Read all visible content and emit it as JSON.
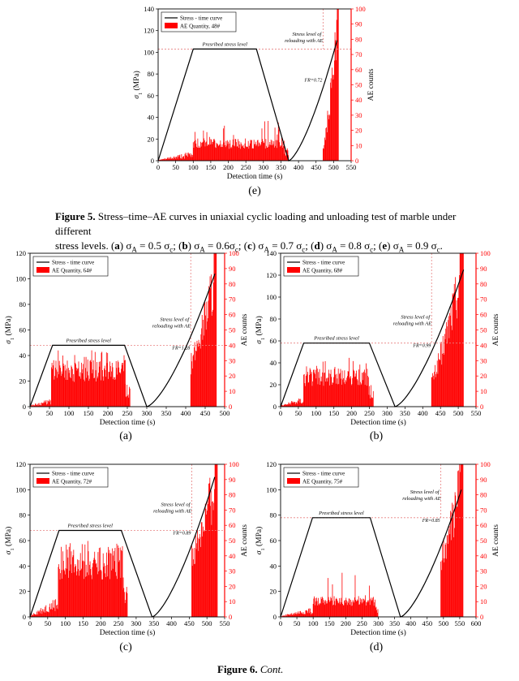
{
  "caption_fig5": {
    "label": "Figure 5.",
    "line1": " Stress–time–AE curves in uniaxial cyclic loading and unloading test of marble under different",
    "line2_parts": [
      "stress levels. (",
      "a",
      ") σ",
      "A",
      " = 0.5 σ",
      "c",
      "; (",
      "b",
      ") σ",
      "A",
      " = 0.6σ",
      "c",
      "; (",
      "c",
      ") σ",
      "A",
      " = 0.7 σ",
      "c",
      "; (",
      "d",
      ") σ",
      "A",
      " = 0.8 σ",
      "c",
      "; (",
      "e",
      ") σ",
      "A",
      " = 0.9 σ",
      "c",
      "."
    ]
  },
  "caption_fig6": {
    "label": "Figure 6.",
    "text": " Cont."
  },
  "panel_labels": {
    "e": "(e)",
    "a": "(a)",
    "b": "(b)",
    "c": "(c)",
    "d": "(d)"
  },
  "common": {
    "xlabel": "Detection time (s)",
    "ylabel": "σ1 (MPa)",
    "ylabel_right": "AE counts",
    "legend_line": "Stress - time curve",
    "annot_prescribed": "Presribed stress level",
    "annot_reload": [
      "Stress level of",
      "reloading with AE"
    ],
    "colors": {
      "ae": "#ff0000",
      "stress": "#000000",
      "refline": "#e88080",
      "axis_right": "#ff0000"
    }
  },
  "chart_data": [
    {
      "id": "e",
      "type": "line+bar",
      "legend_bar": "AE Quantity, 48#",
      "x_range": [
        0,
        550
      ],
      "x_ticks": [
        0,
        50,
        100,
        150,
        200,
        250,
        300,
        350,
        400,
        450,
        500,
        550
      ],
      "y_range": [
        0,
        140
      ],
      "y_ticks": [
        0,
        20,
        40,
        60,
        80,
        100,
        120,
        140
      ],
      "y2_range": [
        0,
        100
      ],
      "y2_ticks": [
        0,
        10,
        20,
        30,
        40,
        50,
        60,
        70,
        80,
        90,
        100
      ],
      "stress_curve": {
        "load_end_t": 100,
        "hold_end_t": 280,
        "unload_end_t": 372,
        "reload_end_t": 510,
        "prescribed_stress": 103,
        "peak_stress": 111
      },
      "ref_stress": 103,
      "ref_vline_t": 470,
      "fr_label": "FR=0.72",
      "ae_profile": {
        "early_t": [
          0,
          100
        ],
        "early_level": 5,
        "hold_t": [
          100,
          360
        ],
        "hold_level": 14,
        "hold_spike_max": 28,
        "tail_t": [
          360,
          372
        ],
        "reload_t": [
          470,
          515
        ],
        "reload_start": 8,
        "reload_end": 100
      }
    },
    {
      "id": "a",
      "type": "line+bar",
      "legend_bar": "AE Quantity, 64#",
      "x_range": [
        0,
        500
      ],
      "x_ticks": [
        0,
        50,
        100,
        150,
        200,
        250,
        300,
        350,
        400,
        450,
        500
      ],
      "y_range": [
        0,
        120
      ],
      "y_ticks": [
        0,
        20,
        40,
        60,
        80,
        100,
        120
      ],
      "y2_range": [
        0,
        100
      ],
      "y2_ticks": [
        0,
        10,
        20,
        30,
        40,
        50,
        60,
        70,
        80,
        90,
        100
      ],
      "stress_curve": {
        "load_end_t": 58,
        "hold_end_t": 243,
        "unload_end_t": 300,
        "reload_end_t": 475,
        "prescribed_stress": 48,
        "peak_stress": 104
      },
      "ref_stress": 48,
      "ref_vline_t": 413,
      "fr_label": "FR=1.28",
      "ae_profile": {
        "early_t": [
          0,
          55
        ],
        "early_level": 4,
        "hold_t": [
          55,
          245
        ],
        "hold_level": 29,
        "hold_spike_max": 37,
        "tail_t": [
          245,
          258
        ],
        "reload_t": [
          413,
          480
        ],
        "reload_start": 30,
        "reload_end": 100
      }
    },
    {
      "id": "b",
      "type": "line+bar",
      "legend_bar": "AE Quantity, 68#",
      "x_range": [
        0,
        550
      ],
      "x_ticks": [
        0,
        50,
        100,
        150,
        200,
        250,
        300,
        350,
        400,
        450,
        500,
        550
      ],
      "y_range": [
        0,
        140
      ],
      "y_ticks": [
        0,
        20,
        40,
        60,
        80,
        100,
        120,
        140
      ],
      "y2_range": [
        0,
        100
      ],
      "y2_ticks": [
        0,
        10,
        20,
        30,
        40,
        50,
        60,
        70,
        80,
        90,
        100
      ],
      "stress_curve": {
        "load_end_t": 65,
        "hold_end_t": 250,
        "unload_end_t": 322,
        "reload_end_t": 515,
        "prescribed_stress": 58,
        "peak_stress": 125
      },
      "ref_stress": 58,
      "ref_vline_t": 425,
      "fr_label": "FR=0.99",
      "ae_profile": {
        "early_t": [
          0,
          65
        ],
        "early_level": 5,
        "hold_t": [
          65,
          248
        ],
        "hold_level": 24,
        "hold_spike_max": 32,
        "tail_t": [
          248,
          262
        ],
        "reload_t": [
          425,
          515
        ],
        "reload_start": 18,
        "reload_end": 100
      }
    },
    {
      "id": "c",
      "type": "line+bar",
      "legend_bar": "AE Quantity, 72#",
      "x_range": [
        0,
        550
      ],
      "x_ticks": [
        0,
        50,
        100,
        150,
        200,
        250,
        300,
        350,
        400,
        450,
        500,
        550
      ],
      "y_range": [
        0,
        120
      ],
      "y_ticks": [
        0,
        20,
        40,
        60,
        80,
        100,
        120
      ],
      "y2_range": [
        0,
        100
      ],
      "y2_ticks": [
        0,
        10,
        20,
        30,
        40,
        50,
        60,
        70,
        80,
        90,
        100
      ],
      "stress_curve": {
        "load_end_t": 82,
        "hold_end_t": 258,
        "unload_end_t": 345,
        "reload_end_t": 522,
        "prescribed_stress": 68,
        "peak_stress": 110
      },
      "ref_stress": 68,
      "ref_vline_t": 457,
      "fr_label": "FR=0.89",
      "ae_profile": {
        "early_t": [
          0,
          80
        ],
        "early_level": 10,
        "hold_t": [
          80,
          262
        ],
        "hold_level": 44,
        "hold_spike_max": 52,
        "tail_t": [
          262,
          275
        ],
        "reload_t": [
          457,
          530
        ],
        "reload_start": 42,
        "reload_end": 100
      }
    },
    {
      "id": "d",
      "type": "line+bar",
      "legend_bar": "AE Quantity, 75#",
      "x_range": [
        0,
        600
      ],
      "x_ticks": [
        0,
        50,
        100,
        150,
        200,
        250,
        300,
        350,
        400,
        450,
        500,
        550,
        600
      ],
      "y_range": [
        0,
        120
      ],
      "y_ticks": [
        0,
        20,
        40,
        60,
        80,
        100,
        120
      ],
      "y2_range": [
        0,
        100
      ],
      "y2_ticks": [
        0,
        10,
        20,
        30,
        40,
        50,
        60,
        70,
        80,
        90,
        100
      ],
      "stress_curve": {
        "load_end_t": 98,
        "hold_end_t": 275,
        "unload_end_t": 368,
        "reload_end_t": 555,
        "prescribed_stress": 78,
        "peak_stress": 100
      },
      "ref_stress": 78,
      "ref_vline_t": 492,
      "fr_label": "FR=0.85",
      "ae_profile": {
        "early_t": [
          0,
          100
        ],
        "early_level": 5,
        "hold_t": [
          100,
          290
        ],
        "hold_level": 13,
        "hold_spike_max": 30,
        "tail_t": [
          290,
          300
        ],
        "reload_t": [
          492,
          560
        ],
        "reload_start": 40,
        "reload_end": 100
      }
    }
  ]
}
